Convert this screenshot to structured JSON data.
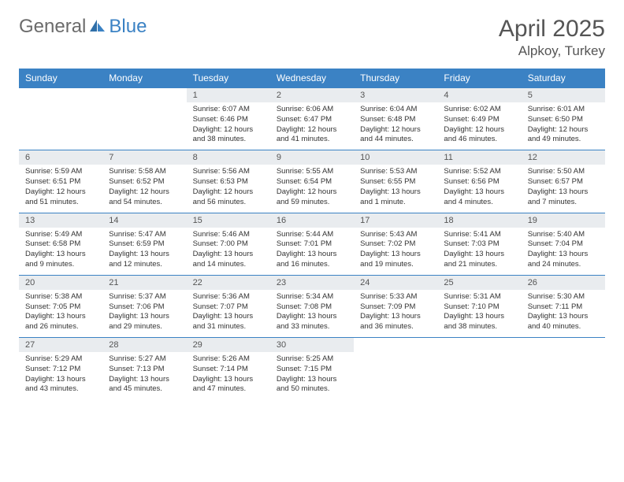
{
  "brand": {
    "part1": "General",
    "part2": "Blue"
  },
  "title": "April 2025",
  "location": "Alpkoy, Turkey",
  "colors": {
    "header_bg": "#3b82c4",
    "header_text": "#ffffff",
    "daynum_bg": "#e9ecef",
    "border": "#3b82c4",
    "text": "#333333",
    "title_text": "#555555"
  },
  "weekdays": [
    "Sunday",
    "Monday",
    "Tuesday",
    "Wednesday",
    "Thursday",
    "Friday",
    "Saturday"
  ],
  "weeks": [
    [
      null,
      null,
      {
        "n": "1",
        "sr": "Sunrise: 6:07 AM",
        "ss": "Sunset: 6:46 PM",
        "dl": "Daylight: 12 hours and 38 minutes."
      },
      {
        "n": "2",
        "sr": "Sunrise: 6:06 AM",
        "ss": "Sunset: 6:47 PM",
        "dl": "Daylight: 12 hours and 41 minutes."
      },
      {
        "n": "3",
        "sr": "Sunrise: 6:04 AM",
        "ss": "Sunset: 6:48 PM",
        "dl": "Daylight: 12 hours and 44 minutes."
      },
      {
        "n": "4",
        "sr": "Sunrise: 6:02 AM",
        "ss": "Sunset: 6:49 PM",
        "dl": "Daylight: 12 hours and 46 minutes."
      },
      {
        "n": "5",
        "sr": "Sunrise: 6:01 AM",
        "ss": "Sunset: 6:50 PM",
        "dl": "Daylight: 12 hours and 49 minutes."
      }
    ],
    [
      {
        "n": "6",
        "sr": "Sunrise: 5:59 AM",
        "ss": "Sunset: 6:51 PM",
        "dl": "Daylight: 12 hours and 51 minutes."
      },
      {
        "n": "7",
        "sr": "Sunrise: 5:58 AM",
        "ss": "Sunset: 6:52 PM",
        "dl": "Daylight: 12 hours and 54 minutes."
      },
      {
        "n": "8",
        "sr": "Sunrise: 5:56 AM",
        "ss": "Sunset: 6:53 PM",
        "dl": "Daylight: 12 hours and 56 minutes."
      },
      {
        "n": "9",
        "sr": "Sunrise: 5:55 AM",
        "ss": "Sunset: 6:54 PM",
        "dl": "Daylight: 12 hours and 59 minutes."
      },
      {
        "n": "10",
        "sr": "Sunrise: 5:53 AM",
        "ss": "Sunset: 6:55 PM",
        "dl": "Daylight: 13 hours and 1 minute."
      },
      {
        "n": "11",
        "sr": "Sunrise: 5:52 AM",
        "ss": "Sunset: 6:56 PM",
        "dl": "Daylight: 13 hours and 4 minutes."
      },
      {
        "n": "12",
        "sr": "Sunrise: 5:50 AM",
        "ss": "Sunset: 6:57 PM",
        "dl": "Daylight: 13 hours and 7 minutes."
      }
    ],
    [
      {
        "n": "13",
        "sr": "Sunrise: 5:49 AM",
        "ss": "Sunset: 6:58 PM",
        "dl": "Daylight: 13 hours and 9 minutes."
      },
      {
        "n": "14",
        "sr": "Sunrise: 5:47 AM",
        "ss": "Sunset: 6:59 PM",
        "dl": "Daylight: 13 hours and 12 minutes."
      },
      {
        "n": "15",
        "sr": "Sunrise: 5:46 AM",
        "ss": "Sunset: 7:00 PM",
        "dl": "Daylight: 13 hours and 14 minutes."
      },
      {
        "n": "16",
        "sr": "Sunrise: 5:44 AM",
        "ss": "Sunset: 7:01 PM",
        "dl": "Daylight: 13 hours and 16 minutes."
      },
      {
        "n": "17",
        "sr": "Sunrise: 5:43 AM",
        "ss": "Sunset: 7:02 PM",
        "dl": "Daylight: 13 hours and 19 minutes."
      },
      {
        "n": "18",
        "sr": "Sunrise: 5:41 AM",
        "ss": "Sunset: 7:03 PM",
        "dl": "Daylight: 13 hours and 21 minutes."
      },
      {
        "n": "19",
        "sr": "Sunrise: 5:40 AM",
        "ss": "Sunset: 7:04 PM",
        "dl": "Daylight: 13 hours and 24 minutes."
      }
    ],
    [
      {
        "n": "20",
        "sr": "Sunrise: 5:38 AM",
        "ss": "Sunset: 7:05 PM",
        "dl": "Daylight: 13 hours and 26 minutes."
      },
      {
        "n": "21",
        "sr": "Sunrise: 5:37 AM",
        "ss": "Sunset: 7:06 PM",
        "dl": "Daylight: 13 hours and 29 minutes."
      },
      {
        "n": "22",
        "sr": "Sunrise: 5:36 AM",
        "ss": "Sunset: 7:07 PM",
        "dl": "Daylight: 13 hours and 31 minutes."
      },
      {
        "n": "23",
        "sr": "Sunrise: 5:34 AM",
        "ss": "Sunset: 7:08 PM",
        "dl": "Daylight: 13 hours and 33 minutes."
      },
      {
        "n": "24",
        "sr": "Sunrise: 5:33 AM",
        "ss": "Sunset: 7:09 PM",
        "dl": "Daylight: 13 hours and 36 minutes."
      },
      {
        "n": "25",
        "sr": "Sunrise: 5:31 AM",
        "ss": "Sunset: 7:10 PM",
        "dl": "Daylight: 13 hours and 38 minutes."
      },
      {
        "n": "26",
        "sr": "Sunrise: 5:30 AM",
        "ss": "Sunset: 7:11 PM",
        "dl": "Daylight: 13 hours and 40 minutes."
      }
    ],
    [
      {
        "n": "27",
        "sr": "Sunrise: 5:29 AM",
        "ss": "Sunset: 7:12 PM",
        "dl": "Daylight: 13 hours and 43 minutes."
      },
      {
        "n": "28",
        "sr": "Sunrise: 5:27 AM",
        "ss": "Sunset: 7:13 PM",
        "dl": "Daylight: 13 hours and 45 minutes."
      },
      {
        "n": "29",
        "sr": "Sunrise: 5:26 AM",
        "ss": "Sunset: 7:14 PM",
        "dl": "Daylight: 13 hours and 47 minutes."
      },
      {
        "n": "30",
        "sr": "Sunrise: 5:25 AM",
        "ss": "Sunset: 7:15 PM",
        "dl": "Daylight: 13 hours and 50 minutes."
      },
      null,
      null,
      null
    ]
  ]
}
